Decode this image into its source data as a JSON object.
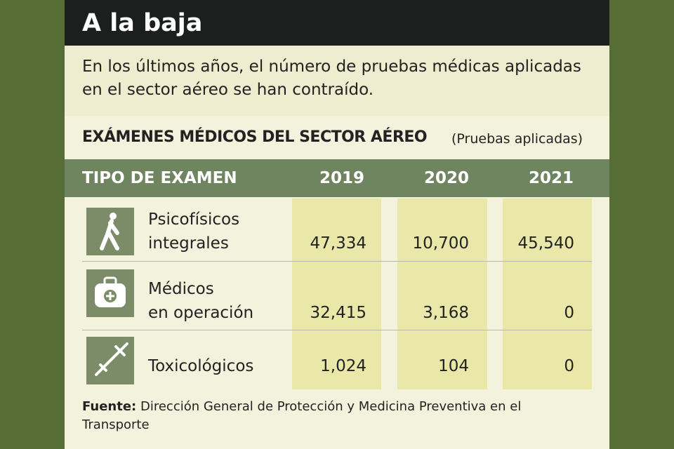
{
  "header": {
    "title": "A la baja",
    "subtitle": "En los últimos años, el número de pruebas médicas aplicadas en el sector aéreo se han contraído."
  },
  "table": {
    "title": "EXÁMENES MÉDICOS DEL SECTOR AÉREO",
    "unit": "(Pruebas aplicadas)",
    "columns": [
      "TIPO DE EXAMEN",
      "2019",
      "2020",
      "2021"
    ],
    "rows": [
      {
        "label": [
          "Psicofísicos",
          "integrales"
        ],
        "values": [
          "47,334",
          "10,700",
          "45,540"
        ]
      },
      {
        "label": [
          "Médicos",
          "en operación"
        ],
        "values": [
          "32,415",
          "3,168",
          "0"
        ]
      },
      {
        "label": [
          "Toxicológicos"
        ],
        "values": [
          "1,024",
          "104",
          "0"
        ]
      }
    ]
  },
  "source": {
    "label": "Fuente:",
    "text": "Dirección General de Protección y Medicina Preventiva en el Transporte"
  }
}
